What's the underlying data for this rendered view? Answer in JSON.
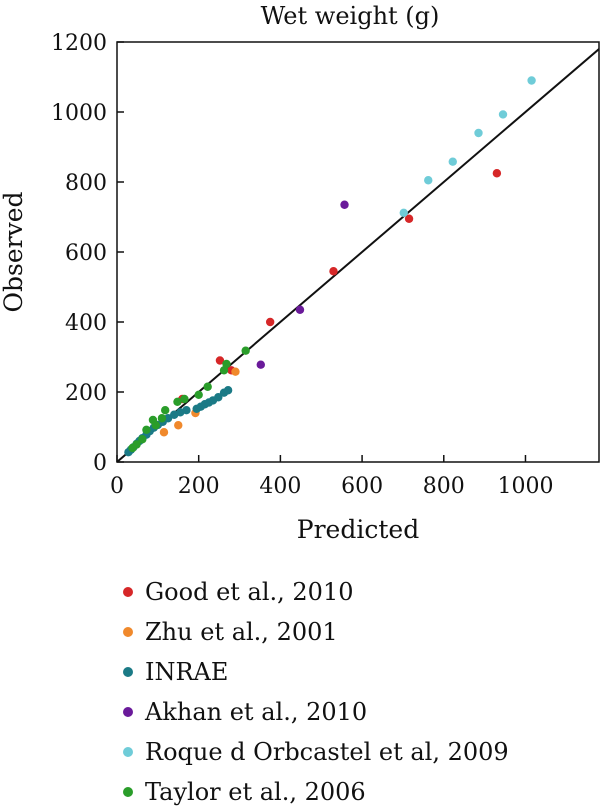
{
  "chart_data": {
    "type": "scatter",
    "title": "Wet weight (g)",
    "xlabel": "Predicted",
    "ylabel": "Observed",
    "xlim": [
      0,
      1180
    ],
    "ylim": [
      0,
      1200
    ],
    "x_ticks": [
      "0",
      "200",
      "400",
      "600",
      "800",
      "1000"
    ],
    "y_ticks": [
      "0",
      "200",
      "400",
      "600",
      "800",
      "1000",
      "1200"
    ],
    "x_tick_values": [
      0,
      200,
      400,
      600,
      800,
      1000
    ],
    "y_tick_values": [
      0,
      200,
      400,
      600,
      800,
      1000,
      1200
    ],
    "identity_line": true,
    "grid": false,
    "legend_position": "below",
    "series": [
      {
        "name": "Good et al., 2010",
        "color": "#d62728",
        "points": [
          [
            160,
            180
          ],
          [
            252,
            290
          ],
          [
            280,
            262
          ],
          [
            375,
            400
          ],
          [
            530,
            545
          ],
          [
            715,
            695
          ],
          [
            930,
            825
          ]
        ]
      },
      {
        "name": "Zhu et al., 2001",
        "color": "#f0892c",
        "points": [
          [
            115,
            85
          ],
          [
            150,
            105
          ],
          [
            192,
            140
          ],
          [
            290,
            258
          ]
        ]
      },
      {
        "name": "INRAE",
        "color": "#1b7a86",
        "points": [
          [
            28,
            28
          ],
          [
            34,
            35
          ],
          [
            40,
            42
          ],
          [
            48,
            52
          ],
          [
            55,
            60
          ],
          [
            62,
            68
          ],
          [
            72,
            78
          ],
          [
            80,
            88
          ],
          [
            90,
            98
          ],
          [
            100,
            106
          ],
          [
            112,
            115
          ],
          [
            125,
            125
          ],
          [
            140,
            135
          ],
          [
            155,
            142
          ],
          [
            170,
            148
          ],
          [
            195,
            152
          ],
          [
            205,
            158
          ],
          [
            215,
            165
          ],
          [
            225,
            170
          ],
          [
            235,
            176
          ],
          [
            248,
            185
          ],
          [
            262,
            198
          ],
          [
            272,
            205
          ]
        ]
      },
      {
        "name": "Akhan et al., 2010",
        "color": "#6a1a9a",
        "points": [
          [
            352,
            278
          ],
          [
            448,
            435
          ],
          [
            557,
            735
          ]
        ]
      },
      {
        "name": "Roque d Orbcastel et al, 2009",
        "color": "#6fccd8",
        "points": [
          [
            702,
            712
          ],
          [
            762,
            805
          ],
          [
            822,
            858
          ],
          [
            885,
            940
          ],
          [
            945,
            993
          ],
          [
            1015,
            1090
          ]
        ]
      },
      {
        "name": "Taylor et al., 2006",
        "color": "#2a9d2a",
        "points": [
          [
            38,
            40
          ],
          [
            48,
            50
          ],
          [
            62,
            65
          ],
          [
            72,
            92
          ],
          [
            88,
            120
          ],
          [
            95,
            105
          ],
          [
            110,
            125
          ],
          [
            118,
            148
          ],
          [
            148,
            172
          ],
          [
            165,
            180
          ],
          [
            200,
            192
          ],
          [
            222,
            215
          ],
          [
            262,
            262
          ],
          [
            268,
            280
          ],
          [
            315,
            318
          ]
        ]
      }
    ]
  }
}
